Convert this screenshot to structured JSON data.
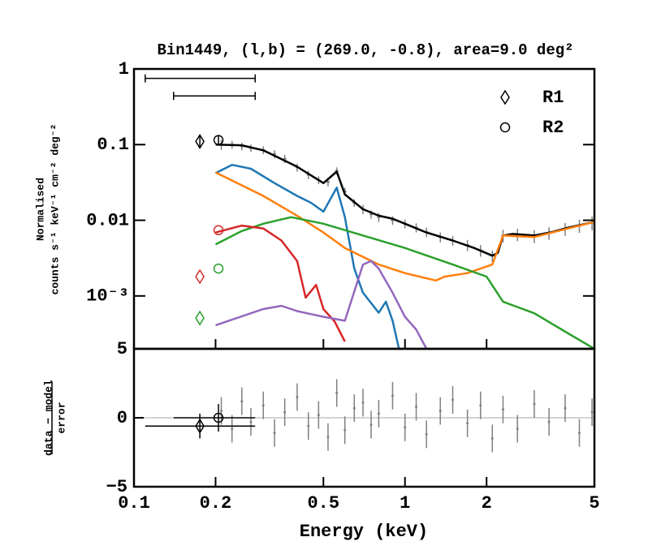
{
  "chart_data": {
    "type": "line",
    "title": "Bin1449, (l,b) = (269.0, -0.8), area=9.0 deg²",
    "y_label": [
      "Normalised",
      "counts s⁻¹ keV⁻¹ cm⁻² deg⁻²"
    ],
    "residual_y_label": [
      "data − model",
      "error"
    ],
    "x_label": "Energy (keV)",
    "xscale": "log",
    "yscale": "log",
    "xlim": [
      0.1,
      5
    ],
    "xticks": [
      0.1,
      0.2,
      0.5,
      1,
      2,
      5
    ],
    "ylim": [
      0.0002,
      1
    ],
    "yticks": [
      1,
      0.1,
      0.01,
      {
        "value": 0.001,
        "label": "10⁻³"
      }
    ],
    "residual_ylim": [
      -5,
      5
    ],
    "residual_yticks": [
      {
        "value": -5,
        "label": "−5"
      },
      0,
      5
    ],
    "legend": "upper right",
    "series": [
      {
        "color": "#000000",
        "x": [
          0.2,
          0.25,
          0.3,
          0.4,
          0.5,
          0.56,
          0.6,
          0.7,
          0.8,
          0.9,
          1.0,
          1.2,
          1.5,
          1.8,
          2.1,
          2.2,
          2.3,
          2.5,
          3,
          3.5,
          4,
          5
        ],
        "values": [
          0.1,
          0.098,
          0.084,
          0.051,
          0.031,
          0.044,
          0.022,
          0.014,
          0.0115,
          0.0105,
          0.009,
          0.0069,
          0.0054,
          0.0043,
          0.0034,
          0.0037,
          0.0063,
          0.0066,
          0.0063,
          0.007,
          0.008,
          0.0095
        ]
      },
      {
        "color": "#1f77b4",
        "x": [
          0.2,
          0.23,
          0.27,
          0.33,
          0.4,
          0.45,
          0.5,
          0.56,
          0.6,
          0.65,
          0.7,
          0.8,
          0.85,
          0.9,
          0.95
        ],
        "values": [
          0.042,
          0.054,
          0.048,
          0.031,
          0.021,
          0.017,
          0.013,
          0.027,
          0.011,
          0.0023,
          0.0011,
          0.0006,
          0.00084,
          0.00047,
          0.0002
        ]
      },
      {
        "color": "#ff7f0e",
        "x": [
          0.2,
          0.3,
          0.4,
          0.5,
          0.6,
          0.8,
          1.0,
          1.3,
          1.4,
          1.7,
          2.1,
          2.3,
          3,
          4,
          5
        ],
        "values": [
          0.043,
          0.021,
          0.0115,
          0.0069,
          0.0043,
          0.0026,
          0.002,
          0.0016,
          0.0018,
          0.002,
          0.0026,
          0.0063,
          0.006,
          0.0078,
          0.0095
        ]
      },
      {
        "color": "#2ca02c",
        "x": [
          0.2,
          0.25,
          0.3,
          0.38,
          0.5,
          0.7,
          1,
          1.5,
          2,
          2.3,
          3,
          4,
          5
        ],
        "values": [
          0.0048,
          0.0072,
          0.009,
          0.011,
          0.009,
          0.0063,
          0.0043,
          0.0026,
          0.0018,
          0.00084,
          0.00059,
          0.00032,
          0.0002
        ]
      },
      {
        "color": "#d62728",
        "x": [
          0.2,
          0.25,
          0.3,
          0.35,
          0.4,
          0.43,
          0.47,
          0.5,
          0.55,
          0.6
        ],
        "values": [
          0.0069,
          0.0085,
          0.0078,
          0.0054,
          0.0029,
          0.00095,
          0.0014,
          0.00067,
          0.00046,
          0.00025
        ]
      },
      {
        "color": "#9467bd",
        "x": [
          0.2,
          0.3,
          0.35,
          0.4,
          0.5,
          0.6,
          0.7,
          0.75,
          0.8,
          0.9,
          1.0,
          1.1,
          1.2
        ],
        "values": [
          0.00041,
          0.00067,
          0.00074,
          0.00063,
          0.00053,
          0.00047,
          0.0026,
          0.0029,
          0.0023,
          0.0011,
          0.00053,
          0.00036,
          0.0002
        ]
      }
    ],
    "data": {
      "color": "#808080",
      "x": [
        0.21,
        0.23,
        0.25,
        0.27,
        0.3,
        0.33,
        0.36,
        0.4,
        0.44,
        0.48,
        0.52,
        0.56,
        0.6,
        0.65,
        0.7,
        0.75,
        0.8,
        0.9,
        1.0,
        1.1,
        1.2,
        1.35,
        1.5,
        1.7,
        1.9,
        2.1,
        2.3,
        2.6,
        3.0,
        3.4,
        3.9,
        4.4,
        4.9
      ],
      "values": [
        0.1,
        0.1,
        0.095,
        0.09,
        0.085,
        0.075,
        0.065,
        0.05,
        0.04,
        0.034,
        0.032,
        0.045,
        0.024,
        0.017,
        0.014,
        0.012,
        0.011,
        0.01,
        0.009,
        0.008,
        0.007,
        0.006,
        0.0054,
        0.0047,
        0.004,
        0.0034,
        0.0063,
        0.0065,
        0.0062,
        0.0068,
        0.0077,
        0.0085,
        0.0093
      ],
      "errors": [
        0.015,
        0.012,
        0.011,
        0.01,
        0.01,
        0.009,
        0.008,
        0.006,
        0.005,
        0.004,
        0.004,
        0.005,
        0.003,
        0.002,
        0.002,
        0.0015,
        0.0015,
        0.0013,
        0.0012,
        0.0011,
        0.001,
        0.0009,
        0.0008,
        0.0008,
        0.0007,
        0.0006,
        0.0012,
        0.0012,
        0.0012,
        0.0013,
        0.0015,
        0.0017,
        0.0019
      ],
      "residuals": [
        0.5,
        -0.8,
        1.2,
        -0.3,
        0.9,
        -1.1,
        0.4,
        1.5,
        -0.6,
        0.2,
        -1.4,
        1.8,
        -0.9,
        0.7,
        1.1,
        -0.5,
        0.3,
        1.6,
        -0.7,
        0.8,
        -1.2,
        0.5,
        1.3,
        -0.4,
        0.9,
        -1.5,
        0.6,
        -0.8,
        1.0,
        -0.3,
        0.7,
        -1.1,
        0.4
      ],
      "residual_errors": [
        1,
        1,
        1,
        1,
        1,
        1,
        1,
        1,
        1,
        1,
        1,
        1,
        1,
        1,
        1,
        1,
        1,
        1,
        1,
        1,
        1,
        1,
        1,
        1,
        1,
        1,
        1,
        1,
        1,
        1,
        1,
        1,
        1
      ]
    },
    "points": [
      {
        "name": "R1",
        "marker": "diamond",
        "x": 0.175,
        "xrange": [
          0.11,
          0.28
        ],
        "bar_y": 0.75,
        "values": [
          0.11,
          0.0018,
          0.00051
        ],
        "colors": [
          "#000000",
          "#d62728",
          "#2ca02c"
        ],
        "error": 0.02,
        "residual": -0.6,
        "residual_error": 0.9
      },
      {
        "name": "R2",
        "marker": "circle",
        "x": 0.205,
        "xrange": [
          0.14,
          0.28
        ],
        "bar_y": 0.44,
        "values": [
          0.115,
          0.0074,
          0.0023
        ],
        "colors": [
          "#000000",
          "#d62728",
          "#2ca02c"
        ],
        "error": 0.015,
        "residual": 0,
        "residual_error": 1
      }
    ]
  }
}
